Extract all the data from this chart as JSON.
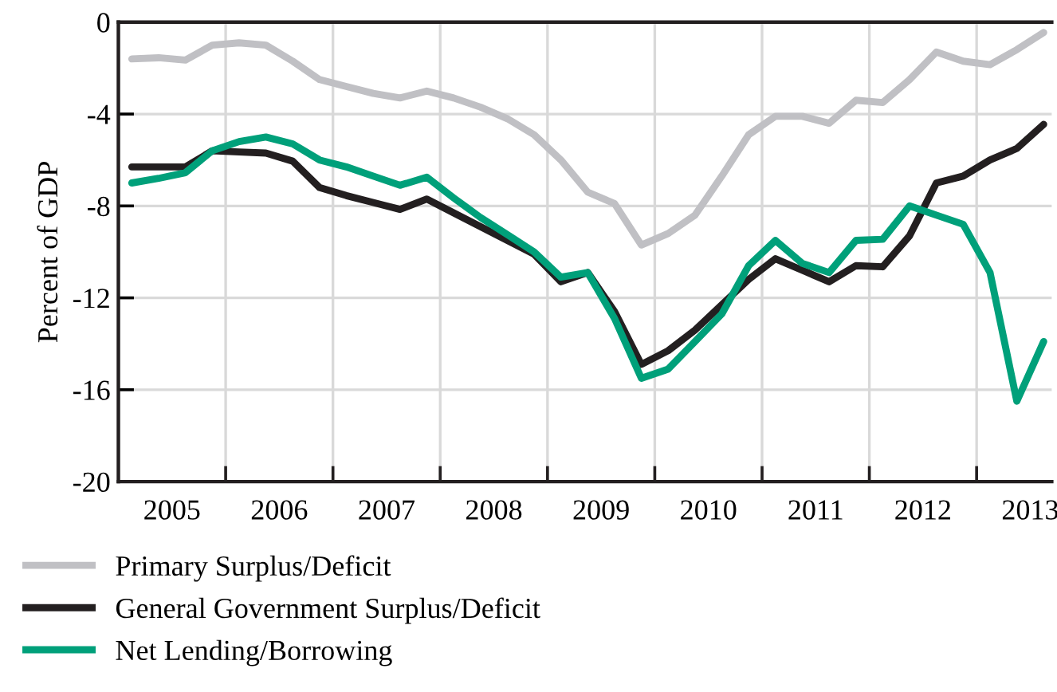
{
  "chart_data": {
    "type": "line",
    "ylabel": "Percent of GDP",
    "x": [
      2005.125,
      2005.375,
      2005.625,
      2005.875,
      2006.125,
      2006.375,
      2006.625,
      2006.875,
      2007.125,
      2007.375,
      2007.625,
      2007.875,
      2008.125,
      2008.375,
      2008.625,
      2008.875,
      2009.125,
      2009.375,
      2009.625,
      2009.875,
      2010.125,
      2010.375,
      2010.625,
      2010.875,
      2011.125,
      2011.375,
      2011.625,
      2011.875,
      2012.125,
      2012.375,
      2012.625,
      2012.875,
      2013.125,
      2013.375,
      2013.625
    ],
    "series": [
      {
        "name": "Primary Surplus/Deficit",
        "color": "#c0c0c4",
        "values": [
          -1.6,
          -1.55,
          -1.65,
          -1.0,
          -0.9,
          -1.0,
          -1.7,
          -2.5,
          -2.8,
          -3.1,
          -3.3,
          -3.0,
          -3.3,
          -3.7,
          -4.2,
          -4.9,
          -6.0,
          -7.4,
          -7.9,
          -9.7,
          -9.2,
          -8.4,
          -6.7,
          -4.9,
          -4.1,
          -4.1,
          -4.4,
          -3.4,
          -3.5,
          -2.5,
          -1.3,
          -1.7,
          -1.85,
          -1.2,
          -0.45
        ]
      },
      {
        "name": "General Government Surplus/Deficit",
        "color": "#231f20",
        "values": [
          -6.3,
          -6.3,
          -6.3,
          -5.6,
          -5.65,
          -5.7,
          -6.05,
          -7.2,
          -7.55,
          -7.85,
          -8.15,
          -7.7,
          -8.3,
          -8.9,
          -9.5,
          -10.1,
          -11.3,
          -10.9,
          -12.6,
          -14.9,
          -14.3,
          -13.4,
          -12.3,
          -11.2,
          -10.3,
          -10.8,
          -11.3,
          -10.6,
          -10.65,
          -9.3,
          -7.0,
          -6.7,
          -6.0,
          -5.5,
          -4.45
        ]
      },
      {
        "name": "Net Lending/Borrowing",
        "color": "#00a07a",
        "values": [
          -7.0,
          -6.8,
          -6.55,
          -5.6,
          -5.2,
          -5.0,
          -5.3,
          -6.0,
          -6.3,
          -6.7,
          -7.1,
          -6.75,
          -7.65,
          -8.5,
          -9.25,
          -10.0,
          -11.1,
          -10.9,
          -12.9,
          -15.5,
          -15.1,
          -13.9,
          -12.7,
          -10.6,
          -9.5,
          -10.5,
          -10.9,
          -9.5,
          -9.45,
          -8.0,
          -8.4,
          -8.8,
          -10.9,
          -16.5,
          -13.9
        ]
      }
    ],
    "xlim": [
      2005,
      2013.7
    ],
    "xticks": [
      {
        "value": 2006,
        "label": null
      },
      {
        "value": 2007,
        "label": null
      },
      {
        "value": 2008,
        "label": null
      },
      {
        "value": 2009,
        "label": null
      },
      {
        "value": 2010,
        "label": null
      },
      {
        "value": 2011,
        "label": null
      },
      {
        "value": 2012,
        "label": null
      },
      {
        "value": 2013,
        "label": null
      },
      {
        "value": 2005.5,
        "label": "2005"
      },
      {
        "value": 2006.5,
        "label": "2006"
      },
      {
        "value": 2007.5,
        "label": "2007"
      },
      {
        "value": 2008.5,
        "label": "2008"
      },
      {
        "value": 2009.5,
        "label": "2009"
      },
      {
        "value": 2010.5,
        "label": "2010"
      },
      {
        "value": 2011.5,
        "label": "2011"
      },
      {
        "value": 2012.5,
        "label": "2012"
      },
      {
        "value": 2013.5,
        "label": "2013"
      }
    ],
    "ylim": [
      -20,
      0
    ],
    "yticks": [
      -20,
      -16,
      -12,
      -8,
      -4,
      0
    ],
    "grid": true,
    "legend": "bottom",
    "marker": "none",
    "line_style": "solid"
  }
}
